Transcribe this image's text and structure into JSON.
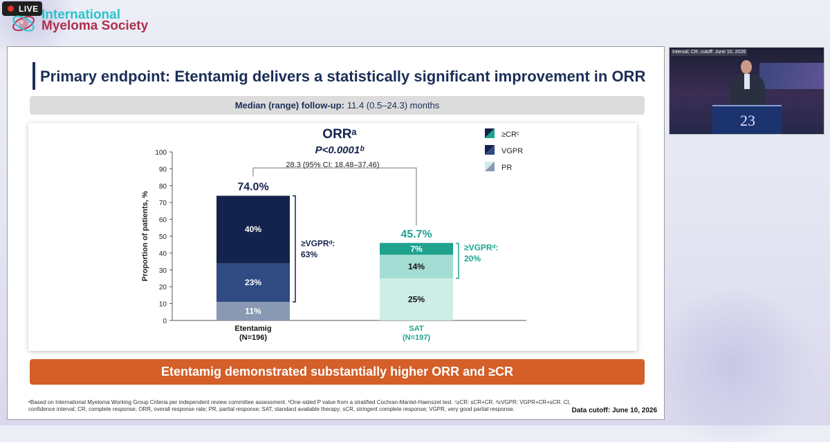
{
  "live_badge": {
    "text": "LIVE"
  },
  "logo": {
    "line1": "International",
    "line2": "Myeloma Society"
  },
  "slide": {
    "title": "Primary endpoint: Etentamig delivers a statistically significant improvement in ORR",
    "followup_label": "Median (range) follow-up:",
    "followup_value": "11.4 (0.5–24.3) months",
    "banner": "Etentamig demonstrated substantially higher ORR and ≥CR",
    "footnote": "ᵃBased on International Myeloma Working Group Criteria per independent review committee assessment. ᵇOne-sided P value from a stratified Cochran-Mantel-Haenszel test. ᶜ≥CR: sCR+CR. ᵈ≥VGPR: VGPR+CR+sCR. CI, confidence interval; CR, complete response; ORR, overall response rate; PR, partial response; SAT, standard available therapy; sCR, stringent complete response; VGPR, very good partial response.",
    "data_cutoff": "Data cutoff: June 10, 2026"
  },
  "chart_data": {
    "type": "bar",
    "stacked": true,
    "title": "ORRᵃ",
    "p_value": "P<0.0001ᵇ",
    "difference": "28.3 (95% CI: 18.48–37.46)",
    "ylabel": "Proportion of patients, %",
    "ylim": [
      0,
      100
    ],
    "yticks": [
      0,
      10,
      20,
      30,
      40,
      50,
      60,
      70,
      80,
      90,
      100
    ],
    "categories": [
      "Etentamig",
      "SAT"
    ],
    "category_n": [
      "(N=196)",
      "(N=197)"
    ],
    "totals": [
      "74.0%",
      "45.7%"
    ],
    "series": [
      {
        "name": "PR",
        "values": [
          11,
          25
        ],
        "labels": [
          "11%",
          "25%"
        ],
        "colors": [
          "#8a99b3",
          "#cdeee6"
        ]
      },
      {
        "name": "VGPR",
        "values": [
          23,
          14
        ],
        "labels": [
          "23%",
          "14%"
        ],
        "colors": [
          "#2f4b82",
          "#a4ddd3"
        ]
      },
      {
        "name": "≥CRᶜ",
        "values": [
          40,
          7
        ],
        "labels": [
          "40%",
          "7%"
        ],
        "colors": [
          "#13234d",
          "#1ea38f"
        ]
      }
    ],
    "vgpr_brackets": [
      {
        "label": "≥VGPRᵈ:",
        "value": "63%",
        "range": [
          11,
          74
        ]
      },
      {
        "label": "≥VGPRᵈ:",
        "value": "20%",
        "range": [
          25,
          45.7
        ]
      }
    ],
    "legend": [
      "≥CRᶜ",
      "VGPR",
      "PR"
    ],
    "legend_position": "top-right",
    "colors": {
      "etentamig_text": "#13234d",
      "sat_text": "#1ea38f"
    }
  },
  "video": {
    "overlay_text": "Interval; CR; cutoff: June 10, 2026",
    "podium_number": "23"
  }
}
